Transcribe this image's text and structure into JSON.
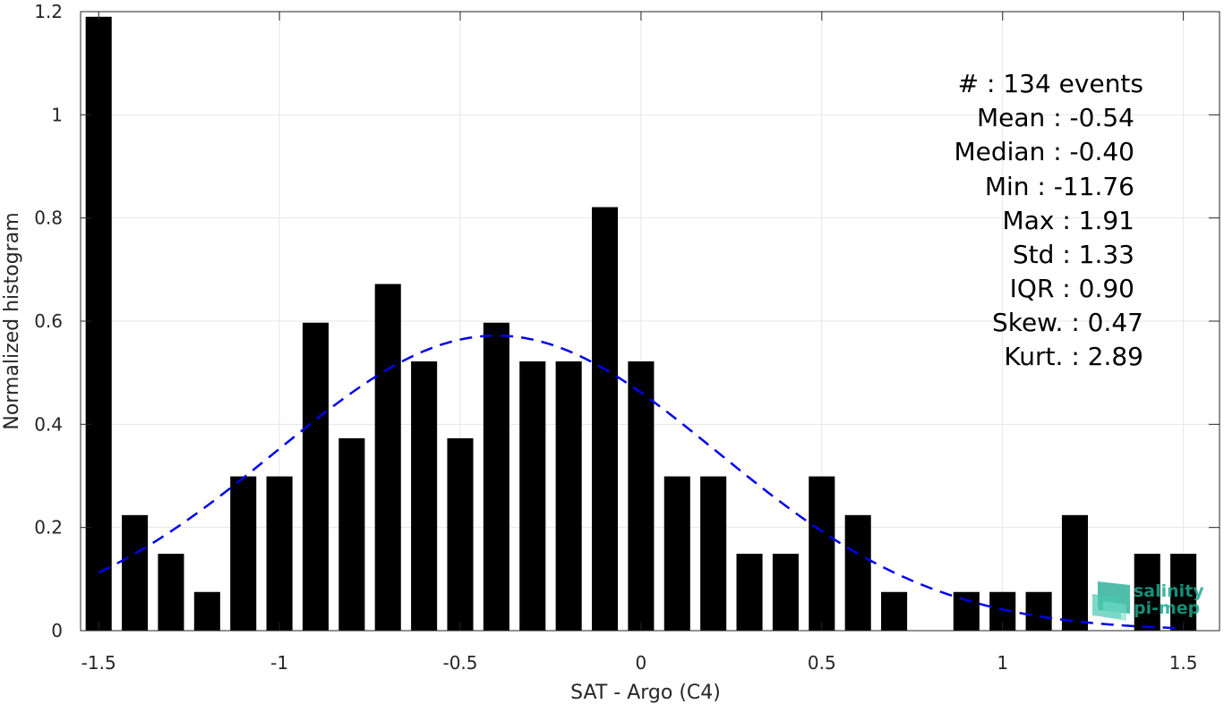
{
  "chart_data": {
    "type": "bar",
    "xlabel": "SAT - Argo (C4)",
    "ylabel": "Normalized histogram",
    "xlim": [
      -1.55,
      1.6
    ],
    "ylim": [
      0,
      1.2
    ],
    "grid": true,
    "xticks": [
      -1.5,
      -1,
      -0.5,
      0,
      0.5,
      1,
      1.5
    ],
    "xtick_labels": [
      "-1.5",
      "-1",
      "-0.5",
      "0",
      "0.5",
      "1",
      "1.5"
    ],
    "yticks": [
      0,
      0.2,
      0.4,
      0.6,
      0.8,
      1,
      1.2
    ],
    "ytick_labels": [
      "0",
      "0.2",
      "0.4",
      "0.6",
      "0.8",
      "1",
      "1.2"
    ],
    "bin_width": 0.1,
    "bar_color": "#000000",
    "bins": [
      {
        "x": -1.5,
        "y": 1.19
      },
      {
        "x": -1.4,
        "y": 0.224
      },
      {
        "x": -1.3,
        "y": 0.149
      },
      {
        "x": -1.2,
        "y": 0.075
      },
      {
        "x": -1.1,
        "y": 0.299
      },
      {
        "x": -1.0,
        "y": 0.299
      },
      {
        "x": -0.9,
        "y": 0.597
      },
      {
        "x": -0.8,
        "y": 0.373
      },
      {
        "x": -0.7,
        "y": 0.672
      },
      {
        "x": -0.6,
        "y": 0.522
      },
      {
        "x": -0.5,
        "y": 0.373
      },
      {
        "x": -0.4,
        "y": 0.597
      },
      {
        "x": -0.3,
        "y": 0.522
      },
      {
        "x": -0.2,
        "y": 0.522
      },
      {
        "x": -0.1,
        "y": 0.821
      },
      {
        "x": 0.0,
        "y": 0.522
      },
      {
        "x": 0.1,
        "y": 0.299
      },
      {
        "x": 0.2,
        "y": 0.299
      },
      {
        "x": 0.3,
        "y": 0.149
      },
      {
        "x": 0.4,
        "y": 0.149
      },
      {
        "x": 0.5,
        "y": 0.299
      },
      {
        "x": 0.6,
        "y": 0.224
      },
      {
        "x": 0.7,
        "y": 0.075
      },
      {
        "x": 0.8,
        "y": 0.0
      },
      {
        "x": 0.9,
        "y": 0.075
      },
      {
        "x": 1.0,
        "y": 0.075
      },
      {
        "x": 1.1,
        "y": 0.075
      },
      {
        "x": 1.2,
        "y": 0.224
      },
      {
        "x": 1.3,
        "y": 0.0
      },
      {
        "x": 1.4,
        "y": 0.149
      },
      {
        "x": 1.5,
        "y": 0.149
      }
    ],
    "fit_curve": {
      "style": "dashed",
      "color": "#0000ee",
      "x_range": [
        -1.5,
        1.5
      ],
      "peak_x": -0.4,
      "peak_y": 0.572,
      "sigma": 0.61
    },
    "stats": [
      {
        "label": "#  : 134 events"
      },
      {
        "label": "Mean : -0.54"
      },
      {
        "label": "Median : -0.40"
      },
      {
        "label": "Min : -11.76"
      },
      {
        "label": "Max : 1.91"
      },
      {
        "label": "Std : 1.33"
      },
      {
        "label": "IQR : 0.90"
      },
      {
        "label": "Skew. : 0.47"
      },
      {
        "label": "Kurt. : 2.89"
      }
    ]
  },
  "logo": {
    "line1": "salinity",
    "line2": "pi-mep",
    "color": "#1aa88f"
  }
}
